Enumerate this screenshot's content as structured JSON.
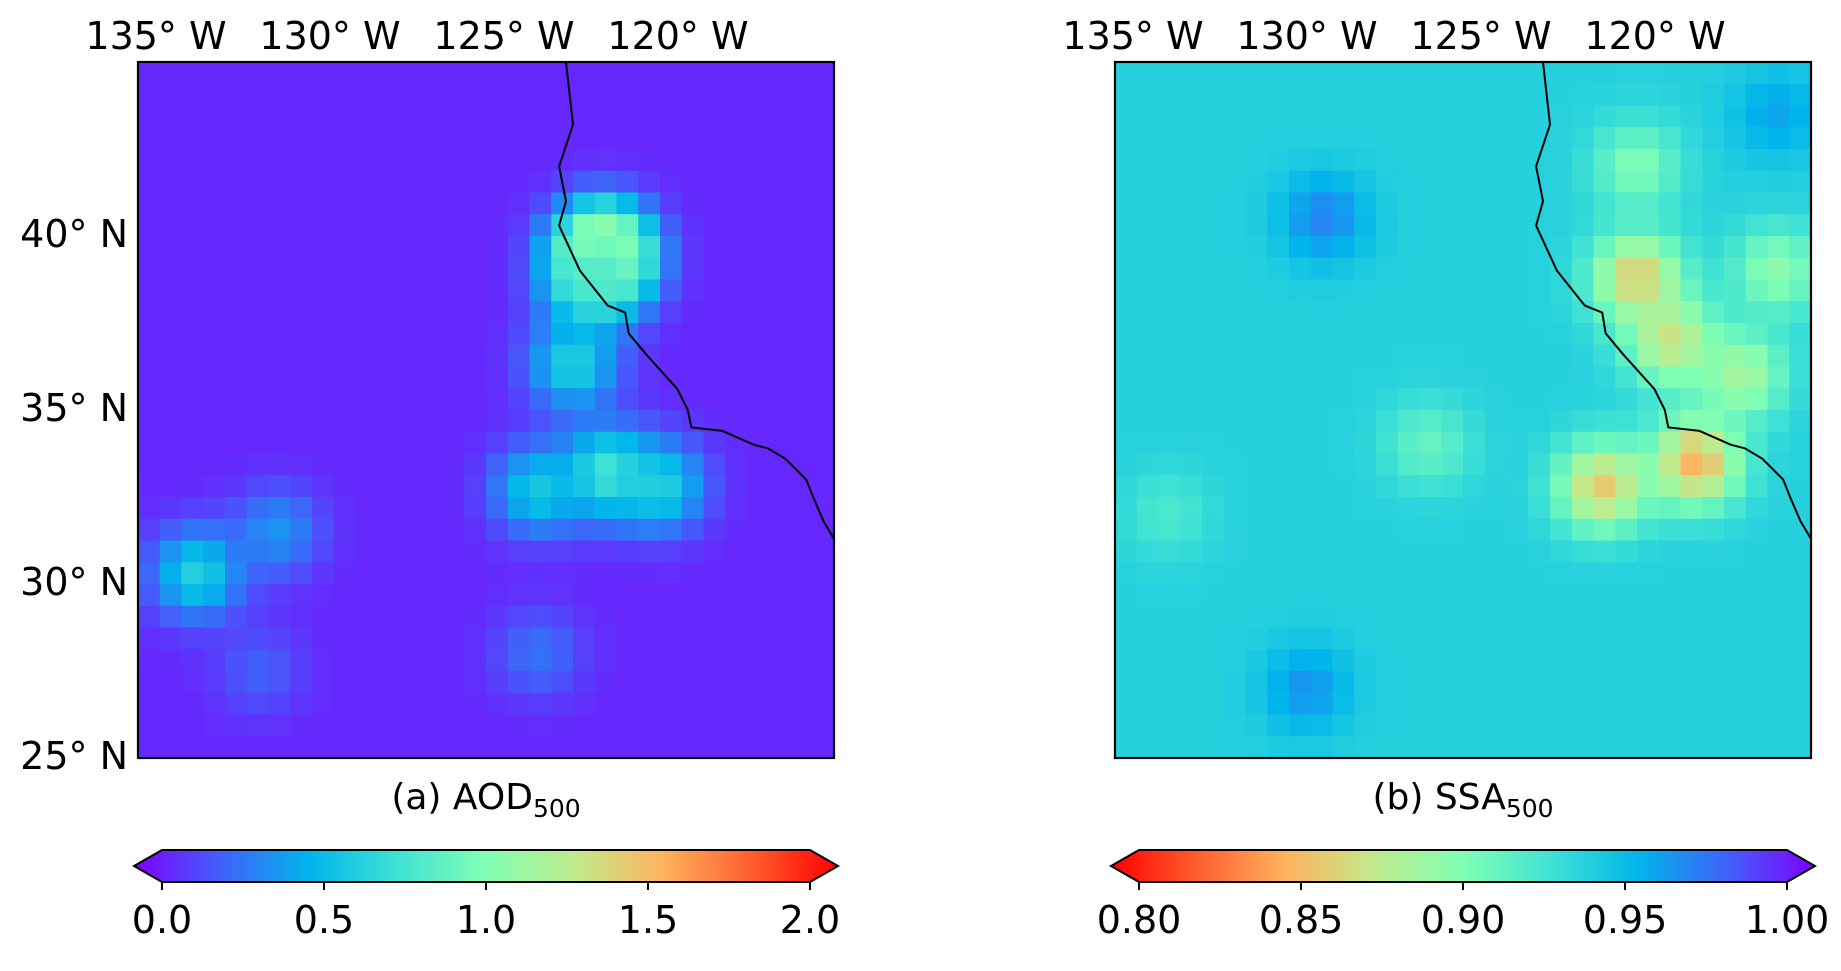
{
  "panels": [
    {
      "id": "a",
      "caption_main": "(a) AOD",
      "caption_sub": "500",
      "lon_ticks": [
        "135° W",
        "130° W",
        "125° W",
        "120° W"
      ],
      "lat_ticks": [
        "40° N",
        "35° N",
        "30° N",
        "25° N"
      ],
      "colorbar": {
        "colormap": "rainbow",
        "ticks": [
          "0.0",
          "0.5",
          "1.0",
          "1.5",
          "2.0"
        ],
        "range": [
          0.0,
          2.0
        ],
        "reversed": false,
        "extend": "both"
      }
    },
    {
      "id": "b",
      "caption_main": "(b) SSA",
      "caption_sub": "500",
      "lon_ticks": [
        "135° W",
        "130° W",
        "125° W",
        "120° W"
      ],
      "colorbar": {
        "colormap": "rainbow",
        "ticks": [
          "0.80",
          "0.85",
          "0.90",
          "0.95",
          "1.00"
        ],
        "range": [
          0.8,
          1.0
        ],
        "reversed": true,
        "extend": "both"
      }
    }
  ],
  "colors": {
    "rainbow_stops": [
      "#8000ff",
      "#4062fa",
      "#00b5eb",
      "#3fe2d4",
      "#80ffb4",
      "#c0eb8d",
      "#ffb360",
      "#ff6030",
      "#ff0000"
    ]
  },
  "map": {
    "extent": {
      "lon_min": -136.5,
      "lon_max": -116.5,
      "lat_min": 25,
      "lat_max": 45
    },
    "grid_cell_deg": 0.625,
    "fields": {
      "aod": {
        "background": 0.1,
        "blobs": [
          {
            "lon": -123.2,
            "lat": 39.6,
            "value": 1.55
          },
          {
            "lon": -123.0,
            "lat": 39.3,
            "value": 1.0
          },
          {
            "lon": -123.5,
            "lat": 38.6,
            "value": 0.8
          },
          {
            "lon": -124.0,
            "lat": 36.3,
            "value": 0.65
          },
          {
            "lon": -123.0,
            "lat": 33.2,
            "value": 0.8
          },
          {
            "lon": -121.5,
            "lat": 32.8,
            "value": 0.65
          },
          {
            "lon": -125.0,
            "lat": 32.7,
            "value": 0.6
          },
          {
            "lon": -134.8,
            "lat": 30.3,
            "value": 0.65
          },
          {
            "lon": -132.5,
            "lat": 31.5,
            "value": 0.4
          },
          {
            "lon": -125.0,
            "lat": 28.0,
            "value": 0.3
          },
          {
            "lon": -133.0,
            "lat": 27.5,
            "value": 0.25
          }
        ]
      },
      "ssa": {
        "background": 0.935,
        "blobs": [
          {
            "lon": -130.5,
            "lat": 40.5,
            "value": 0.965
          },
          {
            "lon": -131.0,
            "lat": 27.0,
            "value": 0.96
          },
          {
            "lon": -121.5,
            "lat": 38.8,
            "value": 0.86
          },
          {
            "lon": -120.5,
            "lat": 37.0,
            "value": 0.87
          },
          {
            "lon": -122.5,
            "lat": 32.8,
            "value": 0.86
          },
          {
            "lon": -119.8,
            "lat": 33.5,
            "value": 0.85
          },
          {
            "lon": -118.5,
            "lat": 36.0,
            "value": 0.885
          },
          {
            "lon": -117.5,
            "lat": 39.0,
            "value": 0.895
          },
          {
            "lon": -121.5,
            "lat": 42.0,
            "value": 0.9
          },
          {
            "lon": -127.5,
            "lat": 34.0,
            "value": 0.91
          },
          {
            "lon": -135.0,
            "lat": 32.0,
            "value": 0.92
          },
          {
            "lon": -121.0,
            "lat": 29.0,
            "value": 0.935
          },
          {
            "lon": -117.5,
            "lat": 43.5,
            "value": 0.955
          }
        ]
      }
    },
    "coastline": [
      [
        -124.2,
        45.0
      ],
      [
        -124.0,
        43.2
      ],
      [
        -124.4,
        42.0
      ],
      [
        -124.2,
        41.0
      ],
      [
        -124.4,
        40.3
      ],
      [
        -123.8,
        39.0
      ],
      [
        -123.0,
        38.0
      ],
      [
        -122.5,
        37.8
      ],
      [
        -122.4,
        37.2
      ],
      [
        -121.9,
        36.6
      ],
      [
        -121.0,
        35.6
      ],
      [
        -120.7,
        35.0
      ],
      [
        -120.6,
        34.5
      ],
      [
        -119.7,
        34.4
      ],
      [
        -118.8,
        34.0
      ],
      [
        -118.4,
        33.9
      ],
      [
        -117.9,
        33.6
      ],
      [
        -117.3,
        33.0
      ],
      [
        -117.1,
        32.5
      ],
      [
        -116.8,
        31.8
      ],
      [
        -116.5,
        31.3
      ]
    ]
  }
}
